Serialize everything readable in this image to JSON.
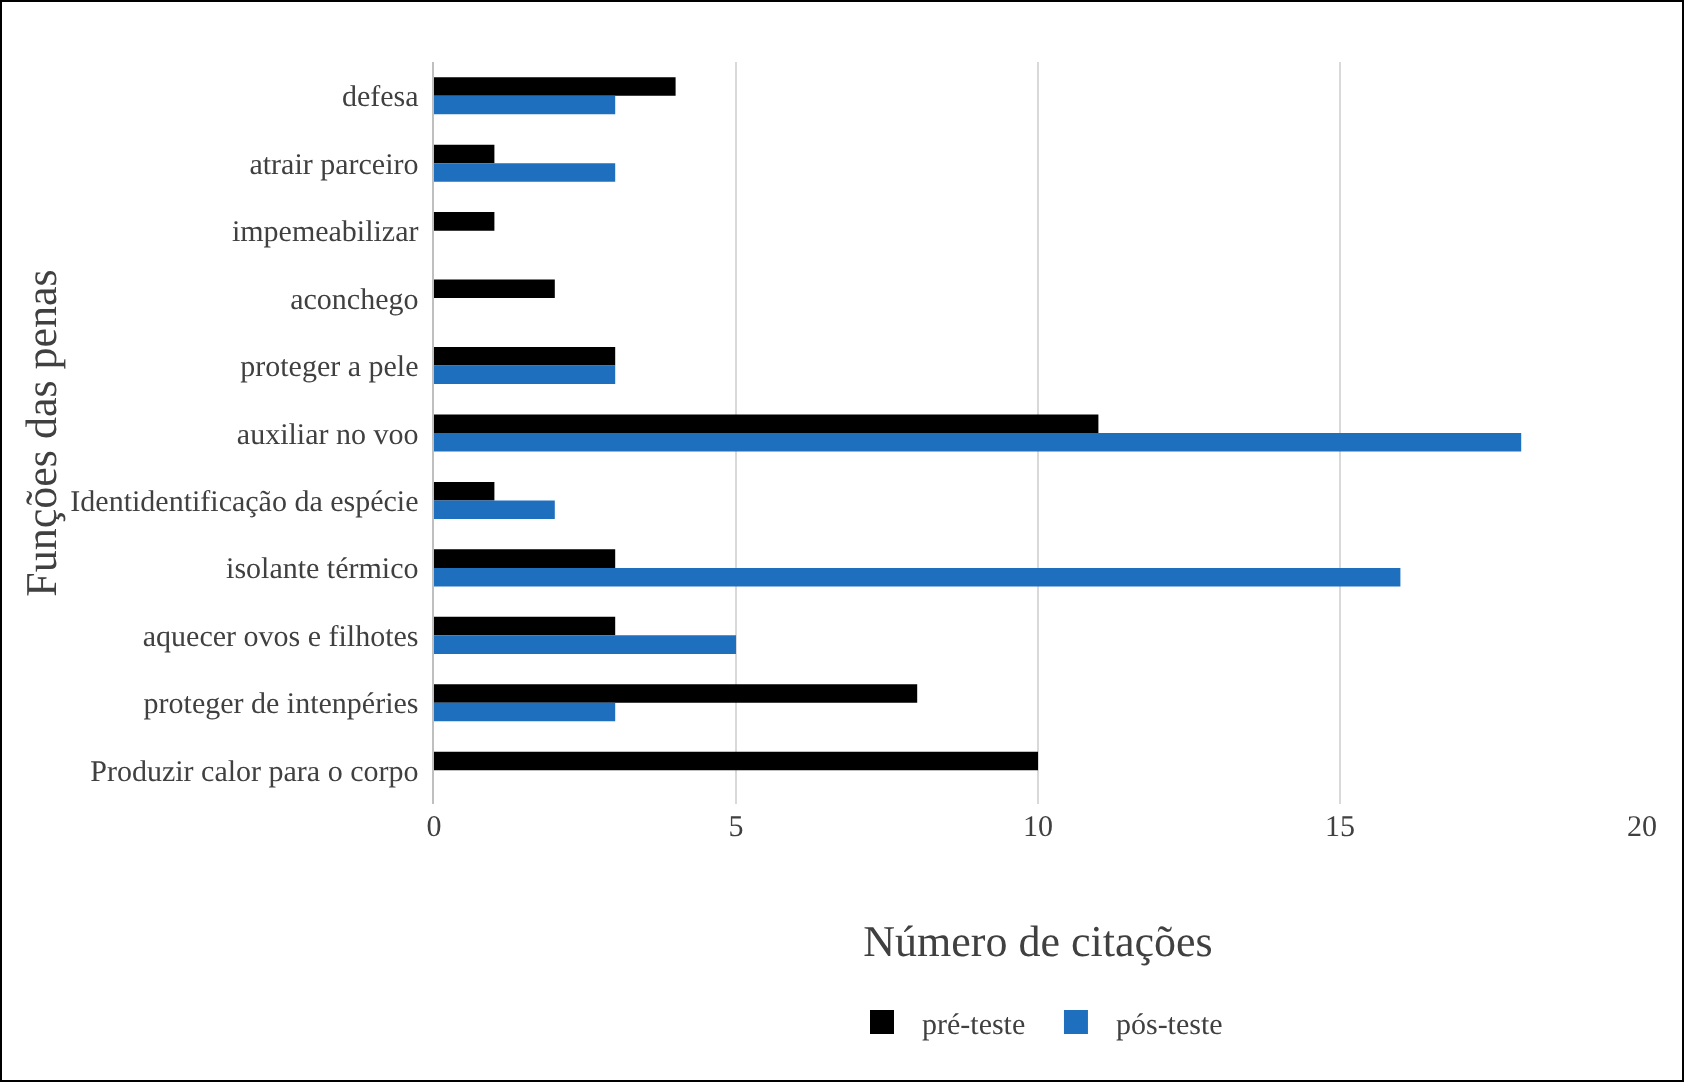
{
  "chart_data": {
    "type": "bar",
    "orientation": "horizontal",
    "xlabel": "Número de citações",
    "ylabel": "Funções das penas",
    "categories": [
      "defesa",
      "atrair parceiro",
      "impemeabilizar",
      "aconchego",
      "proteger a pele",
      "auxiliar no voo",
      "Identidentificação da espécie",
      "isolante térmico",
      "aquecer ovos e filhotes",
      "proteger de intenpéries",
      "Produzir calor para o corpo"
    ],
    "series": [
      {
        "name": "pré-teste",
        "color": "#000000",
        "values": [
          4,
          1,
          1,
          2,
          3,
          11,
          1,
          3,
          3,
          8,
          10
        ]
      },
      {
        "name": "pós-teste",
        "color": "#1f6fbf",
        "values": [
          3,
          3,
          null,
          null,
          3,
          18,
          2,
          16,
          5,
          3,
          null
        ]
      }
    ],
    "xlim": [
      0,
      20
    ],
    "xticks": [
      0,
      5,
      10,
      15,
      20
    ],
    "grid": "x",
    "legend": "bottom"
  }
}
